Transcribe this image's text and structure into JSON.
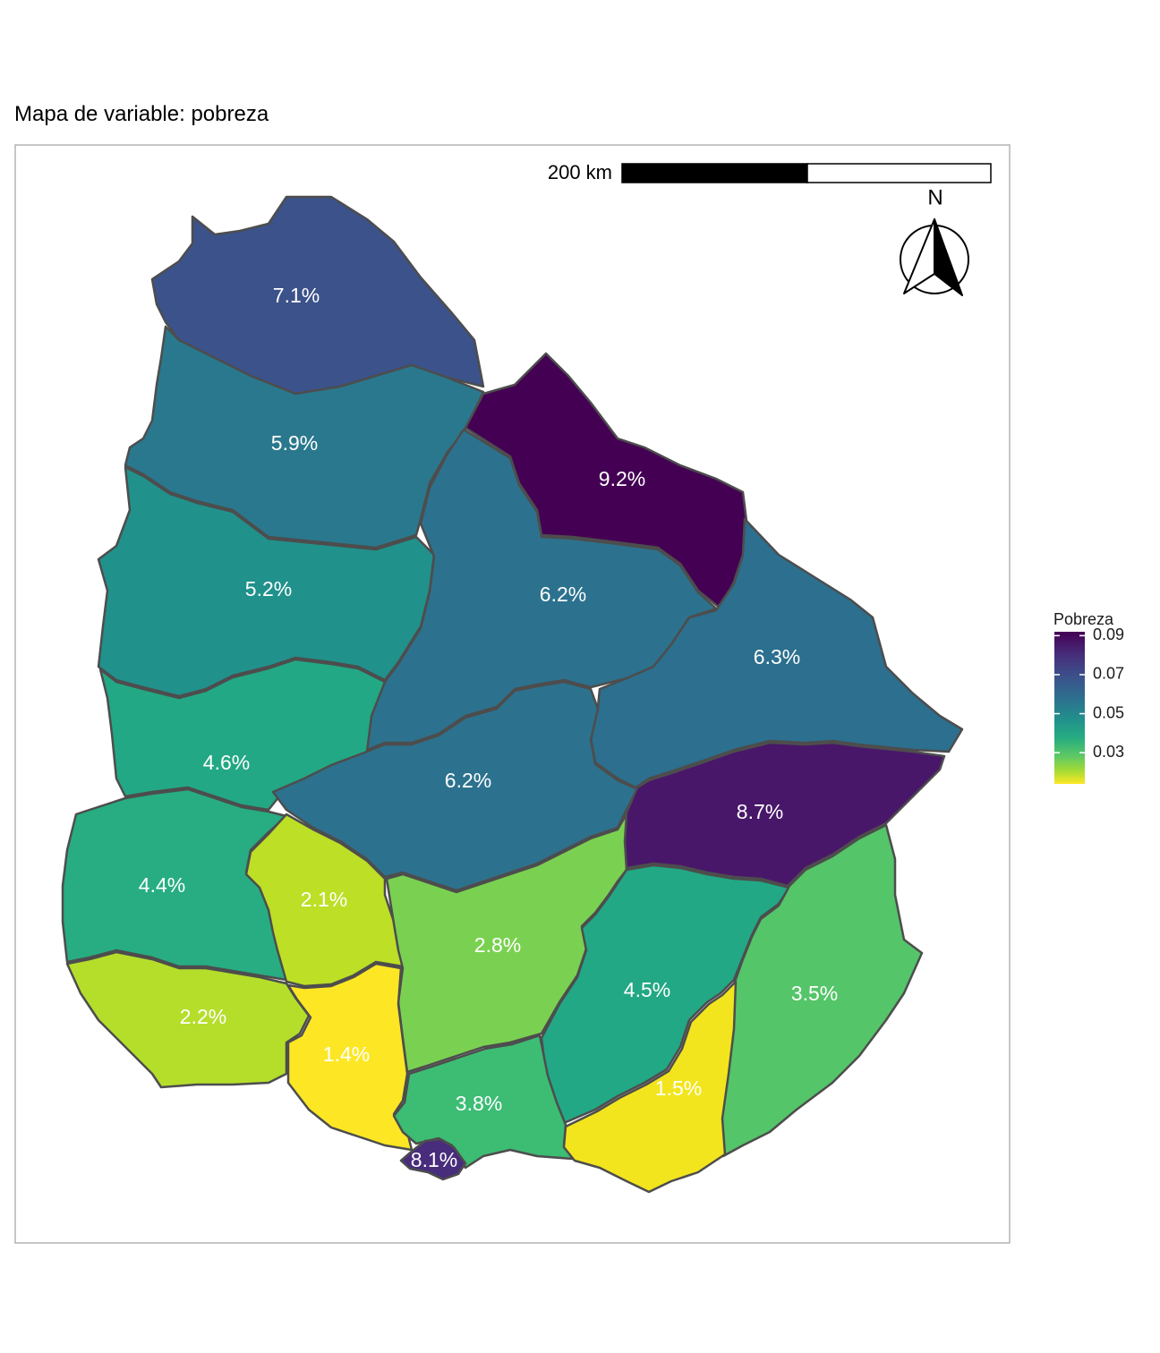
{
  "title": "Mapa de variable: pobreza",
  "scale_bar": {
    "label": "200 km"
  },
  "north_arrow": {
    "label": "N",
    "icon": "north-arrow-icon"
  },
  "legend": {
    "title": "Pobreza",
    "ticks": [
      "0.09",
      "0.07",
      "0.05",
      "0.03"
    ],
    "tick_values": [
      0.09,
      0.07,
      0.05,
      0.03
    ],
    "domain": [
      0.014,
      0.092
    ],
    "palette": "viridis-reversed"
  },
  "regions": [
    {
      "label": "7.1%",
      "value": 0.071,
      "color": "#3b528b"
    },
    {
      "label": "5.9%",
      "value": 0.059,
      "color": "#2a788e"
    },
    {
      "label": "9.2%",
      "value": 0.092,
      "color": "#440154"
    },
    {
      "label": "5.2%",
      "value": 0.052,
      "color": "#21918c"
    },
    {
      "label": "6.2%",
      "value": 0.062,
      "color": "#2c728e"
    },
    {
      "label": "6.3%",
      "value": 0.063,
      "color": "#2c6f8e"
    },
    {
      "label": "4.6%",
      "value": 0.046,
      "color": "#22a884"
    },
    {
      "label": "6.2%",
      "value": 0.062,
      "color": "#2c728e"
    },
    {
      "label": "8.7%",
      "value": 0.087,
      "color": "#481769"
    },
    {
      "label": "4.4%",
      "value": 0.044,
      "color": "#27ad81"
    },
    {
      "label": "2.1%",
      "value": 0.021,
      "color": "#bddf26"
    },
    {
      "label": "2.8%",
      "value": 0.028,
      "color": "#7ad151"
    },
    {
      "label": "4.5%",
      "value": 0.045,
      "color": "#22a884"
    },
    {
      "label": "3.5%",
      "value": 0.035,
      "color": "#54c568"
    },
    {
      "label": "2.2%",
      "value": 0.022,
      "color": "#b5de2b"
    },
    {
      "label": "1.4%",
      "value": 0.014,
      "color": "#fde725"
    },
    {
      "label": "3.8%",
      "value": 0.038,
      "color": "#3dbc74"
    },
    {
      "label": "1.5%",
      "value": 0.015,
      "color": "#f2e51d"
    },
    {
      "label": "8.1%",
      "value": 0.081,
      "color": "#472d7b"
    }
  ]
}
